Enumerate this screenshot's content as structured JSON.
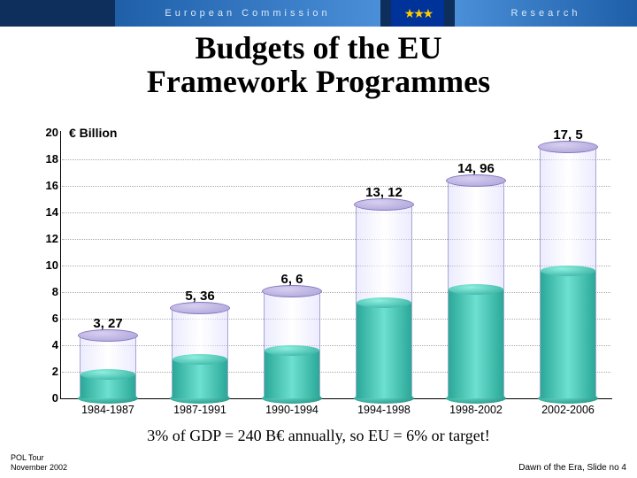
{
  "header": {
    "org": "European Commission",
    "right": "Research"
  },
  "title": {
    "line1": "Budgets of the EU",
    "line2": "Framework Programmes"
  },
  "chart": {
    "type": "bar",
    "ylabel": "€ Billion",
    "ylim": [
      0,
      20
    ],
    "ytick_step": 2,
    "yticks": [
      0,
      2,
      4,
      6,
      8,
      10,
      12,
      14,
      16,
      18,
      20
    ],
    "grid_color": "#aaaaaa",
    "glass_tint": "#c8c8ff",
    "cap_color": "#a8a0d8",
    "liquid_color": "#2aa898",
    "liquid_highlight": "#6ee0d0",
    "background_color": "#ffffff",
    "text_color": "#000000",
    "label_fontsize": 15,
    "tick_fontsize": 13,
    "items": [
      {
        "period": "1984-1987",
        "value": 3.27,
        "label": "3, 27"
      },
      {
        "period": "1987-1991",
        "value": 5.36,
        "label": "5, 36"
      },
      {
        "period": "1990-1994",
        "value": 6.6,
        "label": "6, 6"
      },
      {
        "period": "1994-1998",
        "value": 13.12,
        "label": "13, 12"
      },
      {
        "period": "1998-2002",
        "value": 14.96,
        "label": "14, 96"
      },
      {
        "period": "2002-2006",
        "value": 17.5,
        "label": "17, 5"
      }
    ]
  },
  "footnote": "3% of GDP = 240 B€ annually, so EU = 6% or target!",
  "footer": {
    "left_line1": "POL Tour",
    "left_line2": "November 2002",
    "right": "Dawn of the Era, Slide no 4"
  }
}
